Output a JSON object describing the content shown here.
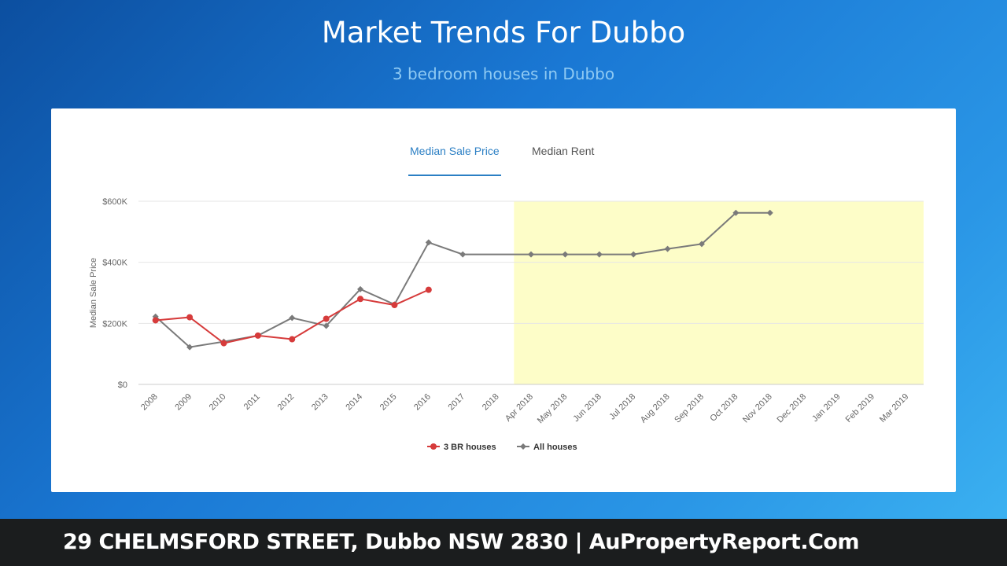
{
  "header": {
    "title": "Market Trends For Dubbo",
    "subtitle": "3 bedroom houses in Dubbo"
  },
  "tabs": [
    {
      "label": "Median Sale Price",
      "active": true
    },
    {
      "label": "Median Rent",
      "active": false
    }
  ],
  "footer": {
    "text": "29 CHELMSFORD STREET, Dubbo NSW 2830 | AuPropertyReport.Com"
  },
  "colors": {
    "series_3br": "#d63b3b",
    "series_all": "#7a7a7a",
    "highlight_band": "#fdfdc8",
    "active_tab": "#2b7fc4"
  },
  "chart_data": {
    "type": "line",
    "ylabel": "Median Sale Price",
    "ylim": [
      0,
      600000
    ],
    "yticks": [
      0,
      200000,
      400000,
      600000
    ],
    "ytick_labels": [
      "$0",
      "$200K",
      "$400K",
      "$600K"
    ],
    "grid": true,
    "legend_position": "bottom-center",
    "categories": [
      "2008",
      "2009",
      "2010",
      "2011",
      "2012",
      "2013",
      "2014",
      "2015",
      "2016",
      "2017",
      "2018",
      "Apr 2018",
      "May 2018",
      "Jun 2018",
      "Jul 2018",
      "Aug 2018",
      "Sep 2018",
      "Oct 2018",
      "Nov 2018",
      "Dec 2018",
      "Jan 2019",
      "Feb 2019",
      "Mar 2019"
    ],
    "highlight_range": [
      "Apr 2018",
      "Mar 2019"
    ],
    "series": [
      {
        "name": "3 BR houses",
        "values": [
          210000,
          220000,
          135000,
          160000,
          148000,
          215000,
          280000,
          260000,
          310000,
          null,
          null,
          null,
          null,
          null,
          null,
          null,
          null,
          null,
          null,
          null,
          null,
          null,
          null
        ]
      },
      {
        "name": "All houses",
        "values": [
          222000,
          122000,
          140000,
          160000,
          218000,
          192000,
          312000,
          262000,
          465000,
          426000,
          null,
          426000,
          426000,
          426000,
          426000,
          444000,
          460000,
          562000,
          562000,
          null,
          null,
          null,
          null
        ]
      }
    ]
  }
}
